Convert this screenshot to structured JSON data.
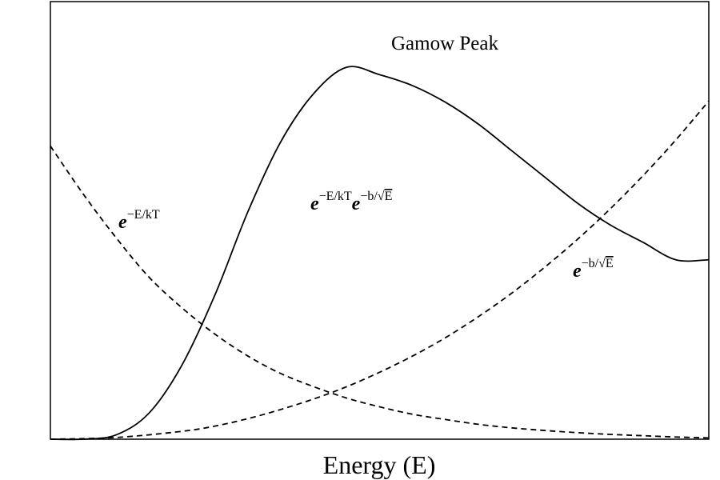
{
  "chart_data": {
    "type": "line",
    "title": "",
    "xlabel": "Energy (E)",
    "ylabel": "",
    "grid": false,
    "legend": "none",
    "axes_ticks": "none",
    "xlim": [
      0,
      1
    ],
    "ylim": [
      0,
      1
    ],
    "annotations": {
      "peak": "Gamow Peak",
      "boltzmann": {
        "base": "e",
        "exp": "−E/kT"
      },
      "tunneling": {
        "base": "e",
        "exp": "−b/",
        "radicand": "E"
      },
      "product": {
        "base1": "e",
        "exp1": "−E/kT",
        "base2": "e",
        "exp2": "−b/",
        "radicand": "E"
      }
    },
    "series": [
      {
        "style": "dashed",
        "x": [
          0,
          0.05,
          0.1,
          0.15,
          0.2,
          0.25,
          0.3,
          0.35,
          0.4,
          0.45,
          0.5,
          0.55,
          0.6,
          0.65,
          0.7,
          0.75,
          0.8,
          0.85,
          0.9,
          0.95,
          1.0
        ],
        "y": [
          0.67,
          0.56,
          0.46,
          0.37,
          0.3,
          0.24,
          0.19,
          0.15,
          0.12,
          0.094,
          0.074,
          0.057,
          0.045,
          0.034,
          0.026,
          0.02,
          0.015,
          0.011,
          0.008,
          0.005,
          0.003
        ]
      },
      {
        "style": "dashed",
        "x": [
          0,
          0.1,
          0.2,
          0.25,
          0.3,
          0.35,
          0.4,
          0.45,
          0.5,
          0.55,
          0.6,
          0.65,
          0.7,
          0.75,
          0.8,
          0.85,
          0.9,
          0.95,
          1.0
        ],
        "y": [
          0,
          0.004,
          0.018,
          0.03,
          0.047,
          0.068,
          0.092,
          0.12,
          0.153,
          0.19,
          0.232,
          0.28,
          0.333,
          0.392,
          0.456,
          0.526,
          0.602,
          0.684,
          0.773
        ]
      },
      {
        "style": "solid",
        "x": [
          0,
          0.05,
          0.1,
          0.15,
          0.2,
          0.25,
          0.3,
          0.35,
          0.4,
          0.45,
          0.5,
          0.55,
          0.6,
          0.65,
          0.7,
          0.75,
          0.8,
          0.85,
          0.9,
          0.95,
          1.0
        ],
        "y": [
          0,
          0.0,
          0.01,
          0.06,
          0.17,
          0.33,
          0.52,
          0.68,
          0.79,
          0.85,
          0.833,
          0.808,
          0.77,
          0.72,
          0.66,
          0.6,
          0.54,
          0.49,
          0.45,
          0.41,
          0.41
        ]
      }
    ]
  }
}
